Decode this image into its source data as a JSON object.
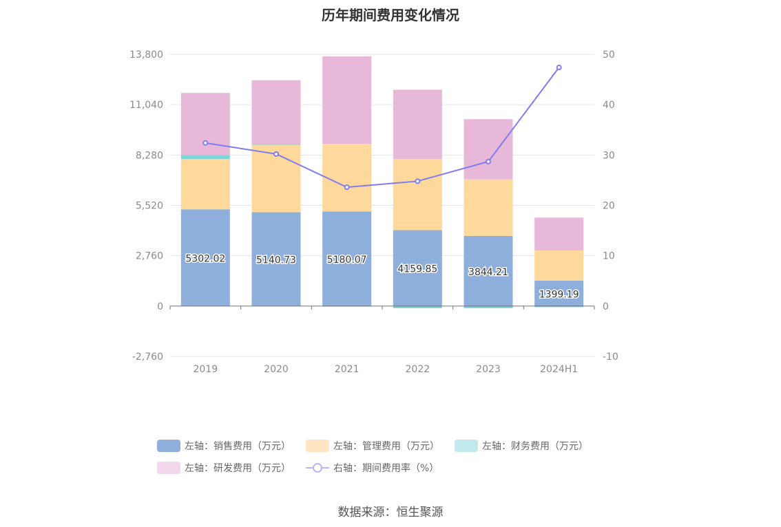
{
  "chart_data": {
    "type": "bar",
    "title": "历年期间费用变化情况",
    "categories": [
      "2019",
      "2020",
      "2021",
      "2022",
      "2023",
      "2024H1"
    ],
    "series": [
      {
        "name": "左轴：销售费用（万元）",
        "axis": "left",
        "stack": true,
        "color": "#8eaedb",
        "values": [
          5302.02,
          5140.73,
          5180.07,
          4159.85,
          3844.21,
          1399.19
        ],
        "labels": [
          "5302.02",
          "5140.73",
          "5180.07",
          "4159.85",
          "3844.21",
          "1399.19"
        ]
      },
      {
        "name": "左轴：管理费用（万元）",
        "axis": "left",
        "stack": true,
        "color": "#ffd99b",
        "values": [
          2760,
          3700,
          3710,
          3900,
          3100,
          1650
        ]
      },
      {
        "name": "左轴：财务费用（万元）",
        "axis": "left",
        "stack": true,
        "color": "#7fd6d8",
        "values": [
          220,
          40,
          -30,
          -120,
          -120,
          -60
        ]
      },
      {
        "name": "左轴：研发费用（万元）",
        "axis": "left",
        "stack": true,
        "color": "#e8b8d8",
        "values": [
          3400,
          3500,
          4800,
          3800,
          3300,
          1800
        ]
      },
      {
        "name": "右轴：期间费用率（%）",
        "axis": "right",
        "type": "line",
        "color": "#7e7cf0",
        "values": [
          32.4,
          30.2,
          23.6,
          24.8,
          28.7,
          47.4
        ]
      }
    ],
    "y_left": {
      "ticks": [
        13800,
        11040,
        8280,
        5520,
        2760,
        0,
        -2760
      ],
      "tick_labels": [
        "13,800",
        "11,040",
        "8,280",
        "5,520",
        "2,760",
        "0",
        "-2,760"
      ],
      "ylim": [
        -2760,
        13800
      ]
    },
    "y_right": {
      "ticks": [
        50,
        40,
        30,
        20,
        10,
        0,
        -10
      ],
      "tick_labels": [
        "50",
        "40",
        "30",
        "20",
        "10",
        "0",
        "-10"
      ],
      "ylim": [
        -10,
        50
      ]
    },
    "grid": true,
    "legend_position": "bottom"
  },
  "source": "数据来源：恒生聚源"
}
